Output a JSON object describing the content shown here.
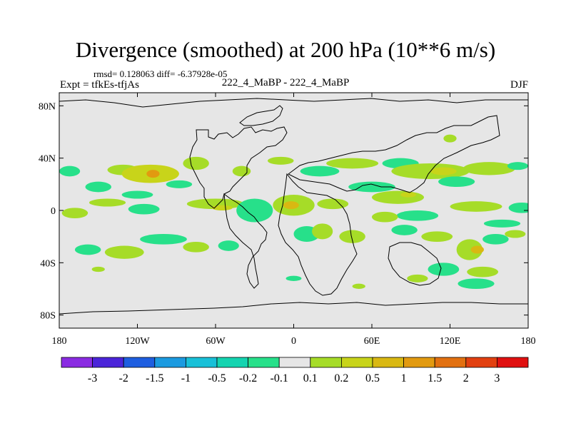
{
  "title": "Divergence (smoothed) at 200 hPa (10**6 m/s)",
  "stats": "rmsd= 0.128063 diff= -6.37928e-05",
  "expt": "Expt = tfkEs-tfjAs",
  "subtitle": "222_4_MaBP - 222_4_MaBP",
  "season": "DJF",
  "colors": {
    "background_field": "#e6e6e6",
    "coast": "#000000"
  },
  "chart_data": {
    "type": "heatmap",
    "projection": "cylindrical equidistant",
    "xlim": [
      -180,
      180
    ],
    "ylim": [
      -90,
      90
    ],
    "x_ticks": [
      {
        "value": -180,
        "label": "180"
      },
      {
        "value": -120,
        "label": "120W"
      },
      {
        "value": -60,
        "label": "60W"
      },
      {
        "value": 0,
        "label": "0"
      },
      {
        "value": 60,
        "label": "60E"
      },
      {
        "value": 120,
        "label": "120E"
      },
      {
        "value": 180,
        "label": "180"
      }
    ],
    "y_ticks": [
      {
        "value": 80,
        "label": "80N"
      },
      {
        "value": 40,
        "label": "40N"
      },
      {
        "value": 0,
        "label": "0"
      },
      {
        "value": -40,
        "label": "40S"
      },
      {
        "value": -80,
        "label": "80S"
      }
    ],
    "colorbar": {
      "colors": [
        "#8a2be2",
        "#4b24d9",
        "#1e5ee0",
        "#1b9ae0",
        "#18c0d8",
        "#14d4b0",
        "#27e08a",
        "#e6e6e6",
        "#a6dc28",
        "#c8d41a",
        "#d9b812",
        "#e29a10",
        "#e27010",
        "#e24010",
        "#e01010"
      ],
      "labels": [
        "-3",
        "-2",
        "-1.5",
        "-1",
        "-0.5",
        "-0.2",
        "-0.1",
        "0.1",
        "0.2",
        "0.5",
        "1",
        "1.5",
        "2",
        "3"
      ]
    },
    "features": [
      {
        "lon": -131,
        "lat": 31,
        "rx": 12,
        "ry": 4,
        "level": 1
      },
      {
        "lon": -110,
        "lat": 28,
        "rx": 22,
        "ry": 7,
        "level": 2
      },
      {
        "lon": -108,
        "lat": 28,
        "rx": 5,
        "ry": 3,
        "level": 4
      },
      {
        "lon": -75,
        "lat": 36,
        "rx": 10,
        "ry": 5,
        "level": 1
      },
      {
        "lon": -40,
        "lat": 30,
        "rx": 7,
        "ry": 4,
        "level": 1
      },
      {
        "lon": -10,
        "lat": 38,
        "rx": 10,
        "ry": 3,
        "level": 1
      },
      {
        "lon": 45,
        "lat": 36,
        "rx": 20,
        "ry": 4,
        "level": 1
      },
      {
        "lon": 20,
        "lat": 30,
        "rx": 15,
        "ry": 4,
        "level": -1
      },
      {
        "lon": 82,
        "lat": 36,
        "rx": 14,
        "ry": 4,
        "level": -1
      },
      {
        "lon": 105,
        "lat": 30,
        "rx": 30,
        "ry": 6,
        "level": 1
      },
      {
        "lon": 115,
        "lat": 30,
        "rx": 10,
        "ry": 3,
        "level": 2
      },
      {
        "lon": 150,
        "lat": 32,
        "rx": 20,
        "ry": 5,
        "level": 1
      },
      {
        "lon": 125,
        "lat": 22,
        "rx": 14,
        "ry": 4,
        "level": -1
      },
      {
        "lon": 172,
        "lat": 34,
        "rx": 8,
        "ry": 3,
        "level": -1
      },
      {
        "lon": -172,
        "lat": 30,
        "rx": 8,
        "ry": 4,
        "level": -1
      },
      {
        "lon": -150,
        "lat": 18,
        "rx": 10,
        "ry": 4,
        "level": -1
      },
      {
        "lon": -120,
        "lat": 12,
        "rx": 12,
        "ry": 3,
        "level": -1
      },
      {
        "lon": -88,
        "lat": 20,
        "rx": 10,
        "ry": 3,
        "level": -1
      },
      {
        "lon": 175,
        "lat": 2,
        "rx": 10,
        "ry": 4,
        "level": -1
      },
      {
        "lon": -168,
        "lat": -2,
        "rx": 10,
        "ry": 4,
        "level": 1
      },
      {
        "lon": -143,
        "lat": 6,
        "rx": 14,
        "ry": 3,
        "level": 1
      },
      {
        "lon": -115,
        "lat": 1,
        "rx": 12,
        "ry": 4,
        "level": -1
      },
      {
        "lon": -60,
        "lat": 5,
        "rx": 22,
        "ry": 4,
        "level": 1
      },
      {
        "lon": -55,
        "lat": 2,
        "rx": 8,
        "ry": 2,
        "level": 2
      },
      {
        "lon": -30,
        "lat": 0,
        "rx": 14,
        "ry": 9,
        "level": -1
      },
      {
        "lon": 0,
        "lat": 4,
        "rx": 16,
        "ry": 8,
        "level": 1
      },
      {
        "lon": -2,
        "lat": 4,
        "rx": 6,
        "ry": 3,
        "level": 3
      },
      {
        "lon": 30,
        "lat": 5,
        "rx": 12,
        "ry": 4,
        "level": 1
      },
      {
        "lon": 60,
        "lat": 18,
        "rx": 18,
        "ry": 4,
        "level": -1
      },
      {
        "lon": 80,
        "lat": 10,
        "rx": 20,
        "ry": 5,
        "level": 1
      },
      {
        "lon": 88,
        "lat": 12,
        "rx": 6,
        "ry": 2,
        "level": 2
      },
      {
        "lon": 95,
        "lat": -4,
        "rx": 16,
        "ry": 4,
        "level": -1
      },
      {
        "lon": 140,
        "lat": 3,
        "rx": 20,
        "ry": 4,
        "level": 1
      },
      {
        "lon": 160,
        "lat": -10,
        "rx": 14,
        "ry": 3,
        "level": -1
      },
      {
        "lon": 70,
        "lat": -5,
        "rx": 10,
        "ry": 4,
        "level": 1
      },
      {
        "lon": 45,
        "lat": -20,
        "rx": 10,
        "ry": 5,
        "level": 1
      },
      {
        "lon": 10,
        "lat": -18,
        "rx": 10,
        "ry": 6,
        "level": -1
      },
      {
        "lon": 22,
        "lat": -16,
        "rx": 8,
        "ry": 6,
        "level": 1
      },
      {
        "lon": -158,
        "lat": -30,
        "rx": 10,
        "ry": 4,
        "level": -1
      },
      {
        "lon": -130,
        "lat": -32,
        "rx": 15,
        "ry": 5,
        "level": 1
      },
      {
        "lon": -100,
        "lat": -22,
        "rx": 18,
        "ry": 4,
        "level": -1
      },
      {
        "lon": -75,
        "lat": -28,
        "rx": 10,
        "ry": 4,
        "level": 1
      },
      {
        "lon": -50,
        "lat": -27,
        "rx": 8,
        "ry": 4,
        "level": -1
      },
      {
        "lon": 85,
        "lat": -15,
        "rx": 10,
        "ry": 4,
        "level": -1
      },
      {
        "lon": 110,
        "lat": -20,
        "rx": 12,
        "ry": 4,
        "level": 1
      },
      {
        "lon": 135,
        "lat": -30,
        "rx": 10,
        "ry": 8,
        "level": 1
      },
      {
        "lon": 141,
        "lat": -30,
        "rx": 5,
        "ry": 3,
        "level": 3
      },
      {
        "lon": 155,
        "lat": -22,
        "rx": 10,
        "ry": 4,
        "level": -1
      },
      {
        "lon": 170,
        "lat": -18,
        "rx": 8,
        "ry": 3,
        "level": 1
      },
      {
        "lon": 115,
        "lat": -45,
        "rx": 12,
        "ry": 5,
        "level": -1
      },
      {
        "lon": 140,
        "lat": -56,
        "rx": 14,
        "ry": 4,
        "level": -1
      },
      {
        "lon": 145,
        "lat": -47,
        "rx": 12,
        "ry": 4,
        "level": 1
      },
      {
        "lon": 95,
        "lat": -52,
        "rx": 8,
        "ry": 3,
        "level": 1
      },
      {
        "lon": 0,
        "lat": -52,
        "rx": 6,
        "ry": 2,
        "level": -1
      },
      {
        "lon": 50,
        "lat": -58,
        "rx": 5,
        "ry": 2,
        "level": 1
      },
      {
        "lon": -150,
        "lat": -45,
        "rx": 5,
        "ry": 2,
        "level": 1
      },
      {
        "lon": 120,
        "lat": 55,
        "rx": 5,
        "ry": 3,
        "level": 1
      }
    ]
  }
}
